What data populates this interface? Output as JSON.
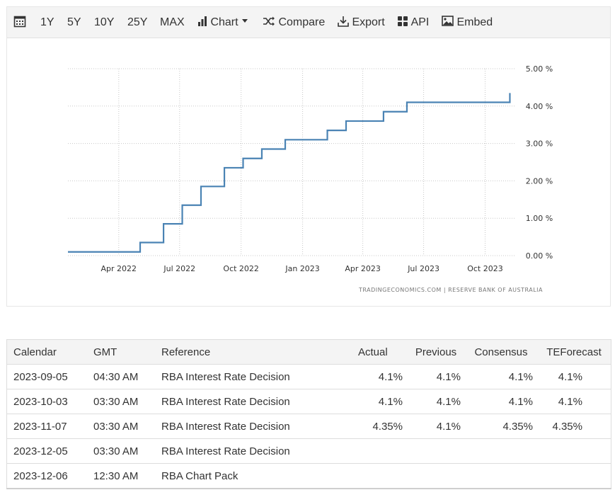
{
  "toolbar": {
    "calendar_icon": "calendar-icon",
    "ranges": [
      "1Y",
      "5Y",
      "10Y",
      "25Y",
      "MAX"
    ],
    "chart_label": "Chart",
    "compare_label": "Compare",
    "export_label": "Export",
    "api_label": "API",
    "embed_label": "Embed"
  },
  "chart_data": {
    "type": "line",
    "step": true,
    "title": "",
    "xlabel": "",
    "ylabel": "",
    "y_ticks": [
      "0.00 %",
      "1.00 %",
      "2.00 %",
      "3.00 %",
      "4.00 %",
      "5.00 %"
    ],
    "x_ticks": [
      "Apr 2022",
      "Jul 2022",
      "Oct 2022",
      "Jan 2023",
      "Apr 2023",
      "Jul 2023",
      "Oct 2023"
    ],
    "ylim": [
      0,
      5
    ],
    "xlim": [
      "2022-01-15",
      "2023-11-15"
    ],
    "grid": true,
    "line_color": "#4a83b4",
    "series": [
      {
        "x": [
          "2022-01-15",
          "2022-05-03",
          "2022-06-07",
          "2022-07-05",
          "2022-08-02",
          "2022-09-06",
          "2022-10-04",
          "2022-11-01",
          "2022-12-06",
          "2023-02-07",
          "2023-03-07",
          "2023-05-02",
          "2023-06-06",
          "2023-11-07"
        ],
        "values": [
          0.1,
          0.35,
          0.85,
          1.35,
          1.85,
          2.35,
          2.6,
          2.85,
          3.1,
          3.35,
          3.6,
          3.85,
          4.1,
          4.35
        ]
      }
    ],
    "source": "TRADINGECONOMICS.COM  |  RESERVE BANK OF AUSTRALIA"
  },
  "table": {
    "headers": {
      "calendar": "Calendar",
      "gmt": "GMT",
      "reference": "Reference",
      "actual": "Actual",
      "previous": "Previous",
      "consensus": "Consensus",
      "teforecast": "TEForecast"
    },
    "rows": [
      {
        "date": "2023-09-05",
        "time": "04:30 AM",
        "ref": "RBA Interest Rate Decision",
        "actual": "4.1%",
        "previous": "4.1%",
        "consensus": "4.1%",
        "forecast": "4.1%"
      },
      {
        "date": "2023-10-03",
        "time": "03:30 AM",
        "ref": "RBA Interest Rate Decision",
        "actual": "4.1%",
        "previous": "4.1%",
        "consensus": "4.1%",
        "forecast": "4.1%"
      },
      {
        "date": "2023-11-07",
        "time": "03:30 AM",
        "ref": "RBA Interest Rate Decision",
        "actual": "4.35%",
        "previous": "4.1%",
        "consensus": "4.35%",
        "forecast": "4.35%"
      },
      {
        "date": "2023-12-05",
        "time": "03:30 AM",
        "ref": "RBA Interest Rate Decision",
        "actual": "",
        "previous": "",
        "consensus": "",
        "forecast": ""
      },
      {
        "date": "2023-12-06",
        "time": "12:30 AM",
        "ref": "RBA Chart Pack",
        "actual": "",
        "previous": "",
        "consensus": "",
        "forecast": ""
      }
    ]
  }
}
